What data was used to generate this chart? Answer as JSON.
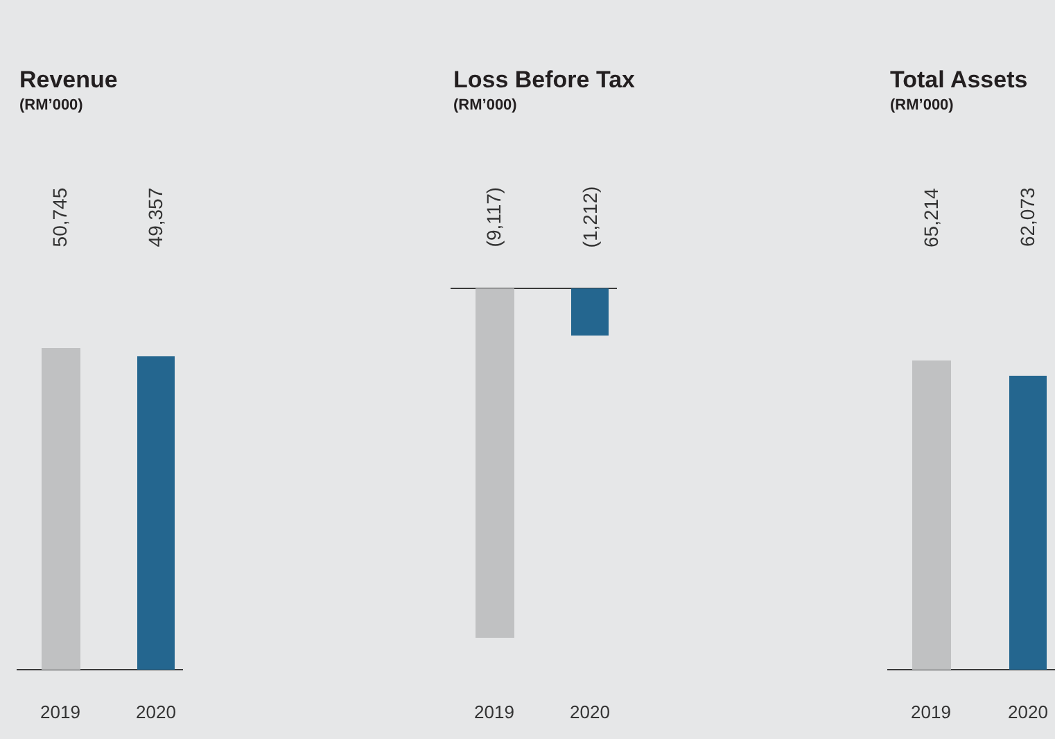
{
  "chart_data": [
    {
      "type": "bar",
      "title": "Revenue",
      "subtitle": "(RM’000)",
      "categories": [
        "2019",
        "2020"
      ],
      "values": [
        50745,
        49357
      ],
      "colors": [
        "#c0c1c2",
        "#24668f"
      ],
      "value_labels": [
        "50,745",
        "49,357"
      ]
    },
    {
      "type": "bar",
      "title": "Loss Before Tax",
      "subtitle": "(RM’000)",
      "categories": [
        "2019",
        "2020"
      ],
      "values": [
        -9117,
        -1212
      ],
      "colors": [
        "#c0c1c2",
        "#24668f"
      ],
      "value_labels": [
        "(9,117)",
        "(1,212)"
      ]
    },
    {
      "type": "bar",
      "title": "Total Assets",
      "subtitle": "(RM’000)",
      "categories": [
        "2019",
        "2020"
      ],
      "values": [
        65214,
        62073
      ],
      "colors": [
        "#c0c1c2",
        "#24668f"
      ],
      "value_labels": [
        "65,214",
        "62,073"
      ]
    }
  ]
}
